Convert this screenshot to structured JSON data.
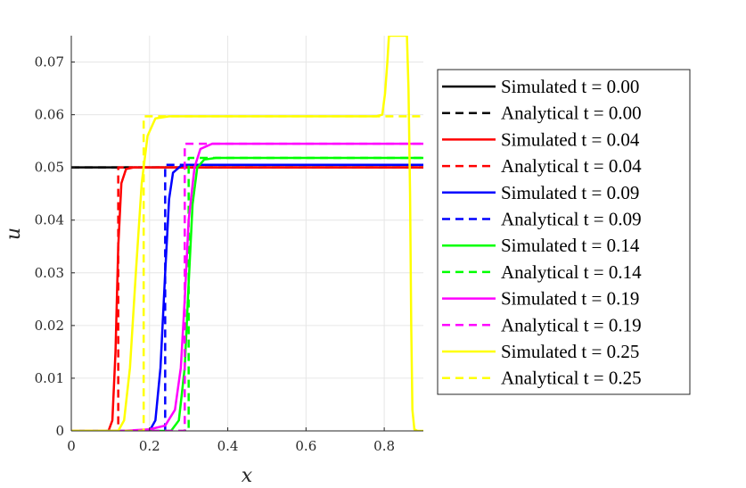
{
  "chart_data": {
    "type": "line",
    "xlabel": "x",
    "ylabel": "u",
    "xlim": [
      0,
      0.9
    ],
    "ylim": [
      0,
      0.075
    ],
    "xticks": [
      "0",
      "0.2",
      "0.4",
      "0.6",
      "0.8"
    ],
    "yticks": [
      "0",
      "0.01",
      "0.02",
      "0.03",
      "0.04",
      "0.05",
      "0.06",
      "0.07"
    ],
    "grid": true,
    "legend_position": "right",
    "series": [
      {
        "name": "Simulated t = 0.00",
        "color": "#000000",
        "dash": "solid",
        "points": [
          [
            0,
            0.05
          ],
          [
            0.9,
            0.05
          ]
        ]
      },
      {
        "name": "Analytical t = 0.00",
        "color": "#000000",
        "dash": "dashed",
        "points": [
          [
            0,
            0.05
          ],
          [
            0.9,
            0.05
          ]
        ]
      },
      {
        "name": "Simulated t = 0.04",
        "color": "#ff0000",
        "dash": "solid",
        "points": [
          [
            0,
            0
          ],
          [
            0.095,
            0
          ],
          [
            0.105,
            0.002
          ],
          [
            0.113,
            0.015
          ],
          [
            0.12,
            0.035
          ],
          [
            0.128,
            0.047
          ],
          [
            0.14,
            0.0497
          ],
          [
            0.16,
            0.05
          ],
          [
            0.9,
            0.05
          ]
        ]
      },
      {
        "name": "Analytical t = 0.04",
        "color": "#ff0000",
        "dash": "dashed",
        "points": [
          [
            0,
            0
          ],
          [
            0.12,
            0
          ],
          [
            0.12,
            0.05
          ],
          [
            0.9,
            0.05
          ]
        ]
      },
      {
        "name": "Simulated t = 0.09",
        "color": "#0000ff",
        "dash": "solid",
        "points": [
          [
            0,
            0
          ],
          [
            0.2,
            0
          ],
          [
            0.215,
            0.002
          ],
          [
            0.228,
            0.012
          ],
          [
            0.24,
            0.03
          ],
          [
            0.25,
            0.044
          ],
          [
            0.26,
            0.049
          ],
          [
            0.28,
            0.0503
          ],
          [
            0.3,
            0.0505
          ],
          [
            0.9,
            0.0505
          ]
        ]
      },
      {
        "name": "Analytical t = 0.09",
        "color": "#0000ff",
        "dash": "dashed",
        "points": [
          [
            0,
            0
          ],
          [
            0.24,
            0
          ],
          [
            0.24,
            0.0505
          ],
          [
            0.9,
            0.0505
          ]
        ]
      },
      {
        "name": "Simulated t = 0.14",
        "color": "#00ff00",
        "dash": "solid",
        "points": [
          [
            0,
            0
          ],
          [
            0.255,
            0
          ],
          [
            0.275,
            0.002
          ],
          [
            0.29,
            0.012
          ],
          [
            0.3,
            0.028
          ],
          [
            0.31,
            0.043
          ],
          [
            0.322,
            0.05
          ],
          [
            0.34,
            0.0515
          ],
          [
            0.37,
            0.0518
          ],
          [
            0.9,
            0.0518
          ]
        ]
      },
      {
        "name": "Analytical t = 0.14",
        "color": "#00ff00",
        "dash": "dashed",
        "points": [
          [
            0,
            0
          ],
          [
            0.3,
            0
          ],
          [
            0.3,
            0.0518
          ],
          [
            0.9,
            0.0518
          ]
        ]
      },
      {
        "name": "Simulated t = 0.19",
        "color": "#ff00ff",
        "dash": "solid",
        "points": [
          [
            0,
            0
          ],
          [
            0.13,
            0
          ],
          [
            0.2,
            0.0003
          ],
          [
            0.24,
            0.001
          ],
          [
            0.265,
            0.004
          ],
          [
            0.28,
            0.012
          ],
          [
            0.29,
            0.025
          ],
          [
            0.3,
            0.04
          ],
          [
            0.315,
            0.05
          ],
          [
            0.33,
            0.0535
          ],
          [
            0.36,
            0.0545
          ],
          [
            0.9,
            0.0545
          ]
        ]
      },
      {
        "name": "Analytical t = 0.19",
        "color": "#ff00ff",
        "dash": "dashed",
        "points": [
          [
            0,
            0
          ],
          [
            0.29,
            0
          ],
          [
            0.29,
            0.0545
          ],
          [
            0.9,
            0.0545
          ]
        ]
      },
      {
        "name": "Simulated t = 0.25",
        "color": "#ffff00",
        "dash": "solid",
        "points": [
          [
            0,
            0
          ],
          [
            0.12,
            0
          ],
          [
            0.135,
            0.002
          ],
          [
            0.15,
            0.012
          ],
          [
            0.165,
            0.03
          ],
          [
            0.18,
            0.047
          ],
          [
            0.195,
            0.056
          ],
          [
            0.215,
            0.0593
          ],
          [
            0.25,
            0.0597
          ],
          [
            0.78,
            0.0597
          ],
          [
            0.795,
            0.06
          ],
          [
            0.802,
            0.064
          ],
          [
            0.808,
            0.07
          ],
          [
            0.812,
            0.075
          ],
          [
            0.858,
            0.075
          ],
          [
            0.862,
            0.065
          ],
          [
            0.866,
            0.045
          ],
          [
            0.869,
            0.02
          ],
          [
            0.872,
            0.004
          ],
          [
            0.877,
            0.0003
          ],
          [
            0.885,
            0
          ],
          [
            0.9,
            0
          ]
        ]
      },
      {
        "name": "Analytical t = 0.25",
        "color": "#ffff00",
        "dash": "dashed",
        "points": [
          [
            0,
            0
          ],
          [
            0.185,
            0
          ],
          [
            0.185,
            0.0597
          ],
          [
            0.9,
            0.0597
          ]
        ]
      }
    ]
  }
}
